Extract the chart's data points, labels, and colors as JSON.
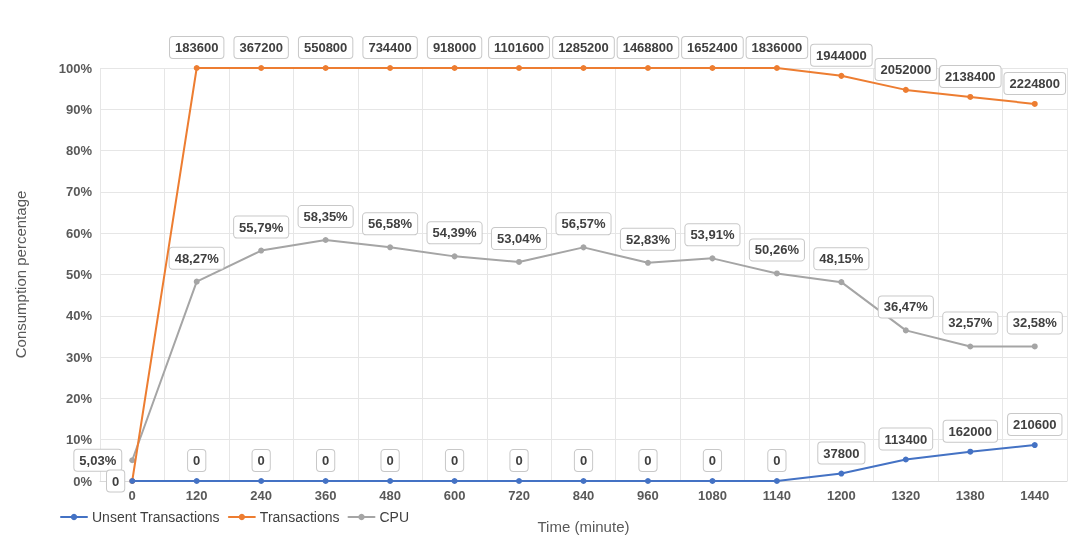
{
  "chart_data": {
    "type": "line",
    "xlabel": "Time (minute)",
    "ylabel": "Consumption percentage",
    "categories": [
      "0",
      "120",
      "240",
      "360",
      "480",
      "600",
      "720",
      "840",
      "960",
      "1080",
      "1140",
      "1200",
      "1320",
      "1380",
      "1440"
    ],
    "series": [
      {
        "name": "Unsent Transactions",
        "color": "#4472c4",
        "values": [
          0,
          0,
          0,
          0,
          0,
          0,
          0,
          0,
          0,
          0,
          0,
          1.8,
          5.2,
          7.1,
          8.7
        ]
      },
      {
        "name": "Transactions",
        "color": "#ed7d31",
        "values": [
          0,
          100,
          100,
          100,
          100,
          100,
          100,
          100,
          100,
          100,
          100,
          98.1,
          94.7,
          93.0,
          91.3
        ]
      },
      {
        "name": "CPU",
        "color": "#a5a5a5",
        "values": [
          5.03,
          48.27,
          55.79,
          58.35,
          56.58,
          54.39,
          53.04,
          56.57,
          52.83,
          53.91,
          50.26,
          48.15,
          36.47,
          32.57,
          32.58
        ],
        "value_labels": [
          "5,03%",
          "48,27%",
          "55,79%",
          "58,35%",
          "56,58%",
          "54,39%",
          "53,04%",
          "56,57%",
          "52,83%",
          "53,91%",
          "50,26%",
          "48,15%",
          "36,47%",
          "32,57%",
          "32,58%"
        ]
      }
    ],
    "annotations": [
      {
        "text": "0",
        "x": "0",
        "y": 0
      },
      {
        "text": "0",
        "x": "120",
        "y": 0
      },
      {
        "text": "0",
        "x": "240",
        "y": 0
      },
      {
        "text": "0",
        "x": "360",
        "y": 0
      },
      {
        "text": "0",
        "x": "480",
        "y": 0
      },
      {
        "text": "0",
        "x": "600",
        "y": 0
      },
      {
        "text": "0",
        "x": "720",
        "y": 0
      },
      {
        "text": "0",
        "x": "840",
        "y": 0
      },
      {
        "text": "0",
        "x": "960",
        "y": 0
      },
      {
        "text": "0",
        "x": "1080",
        "y": 0
      },
      {
        "text": "0",
        "x": "1140",
        "y": 0
      },
      {
        "text": "37800",
        "x": "1200",
        "y": 1.8
      },
      {
        "text": "113400",
        "x": "1320",
        "y": 5.2
      },
      {
        "text": "162000",
        "x": "1380",
        "y": 7.1
      },
      {
        "text": "210600",
        "x": "1440",
        "y": 8.7
      },
      {
        "text": "183600",
        "x": "120",
        "y": 100
      },
      {
        "text": "367200",
        "x": "240",
        "y": 100
      },
      {
        "text": "550800",
        "x": "360",
        "y": 100
      },
      {
        "text": "734400",
        "x": "480",
        "y": 100
      },
      {
        "text": "918000",
        "x": "600",
        "y": 100
      },
      {
        "text": "1101600",
        "x": "720",
        "y": 100
      },
      {
        "text": "1285200",
        "x": "840",
        "y": 100
      },
      {
        "text": "1468800",
        "x": "960",
        "y": 100
      },
      {
        "text": "1652400",
        "x": "1080",
        "y": 100
      },
      {
        "text": "1836000",
        "x": "1140",
        "y": 100
      },
      {
        "text": "1944000",
        "x": "1200",
        "y": 98.1
      },
      {
        "text": "2052000",
        "x": "1320",
        "y": 94.7
      },
      {
        "text": "2138400",
        "x": "1380",
        "y": 93.0
      },
      {
        "text": "2224800",
        "x": "1440",
        "y": 91.3
      }
    ],
    "ylim": [
      0,
      100
    ],
    "yticks": [
      {
        "value": 0,
        "label": "0%"
      },
      {
        "value": 10,
        "label": "10%"
      },
      {
        "value": 20,
        "label": "20%"
      },
      {
        "value": 30,
        "label": "30%"
      },
      {
        "value": 40,
        "label": "40%"
      },
      {
        "value": 50,
        "label": "50%"
      },
      {
        "value": 60,
        "label": "60%"
      },
      {
        "value": 70,
        "label": "70%"
      },
      {
        "value": 80,
        "label": "80%"
      },
      {
        "value": 90,
        "label": "90%"
      },
      {
        "value": 100,
        "label": "100%"
      }
    ],
    "grid": true,
    "legend": "bottom left",
    "marker": "circle",
    "line_style": "solid"
  }
}
